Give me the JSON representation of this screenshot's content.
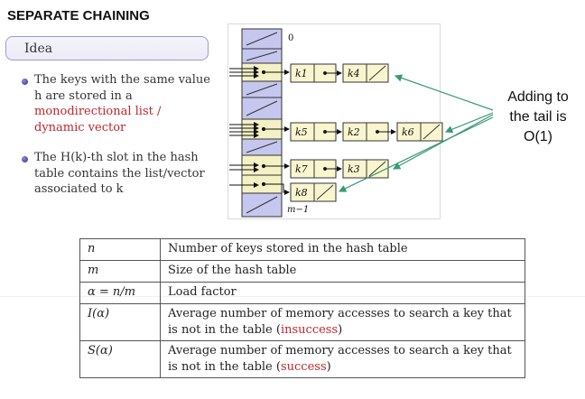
{
  "title": "SEPARATE CHAINING",
  "idea": {
    "label": "Idea",
    "bullet1": {
      "line1": "The keys with the same value",
      "line2": "h are stored in a",
      "red1": "monodirectional list /",
      "red2": "dynamic vector"
    },
    "bullet2": {
      "line1": "The H(k)-th slot in the hash",
      "line2": "table contains the list/vector",
      "line3": "associated to k"
    }
  },
  "diagram": {
    "index_top": "0",
    "index_bottom": "m−1",
    "keys": {
      "k1": "k1",
      "k4": "k4",
      "k5": "k5",
      "k2": "k2",
      "k6": "k6",
      "k7": "k7",
      "k3": "k3",
      "k8": "k8"
    }
  },
  "callout": {
    "line1": "Adding to",
    "line2": "the tail is",
    "line3": "O(1)"
  },
  "table": {
    "rows": [
      {
        "symbol": "n",
        "desc1": "Number of keys stored in the hash table",
        "desc2": "",
        "red": ""
      },
      {
        "symbol": "m",
        "desc1": "Size of the hash table",
        "desc2": "",
        "red": ""
      },
      {
        "symbol": "α = n/m",
        "desc1": "Load factor",
        "desc2": "",
        "red": ""
      },
      {
        "symbol": "I(α)",
        "desc1": "Average number of memory accesses to search a key that",
        "desc2": "is not in the table (",
        "red": "insuccess",
        "tail": ")"
      },
      {
        "symbol": "S(α)",
        "desc1": "Average number of memory accesses to search a key that",
        "desc2": "is not in the table (",
        "red": "success",
        "tail": ")"
      }
    ]
  },
  "colors": {
    "slot_fill": "#c5c7ee",
    "slot_used": "#f4f1c4",
    "node_fill": "#f9f6cf",
    "arrow_green": "#3a9a72",
    "red_text": "#c0262d"
  }
}
